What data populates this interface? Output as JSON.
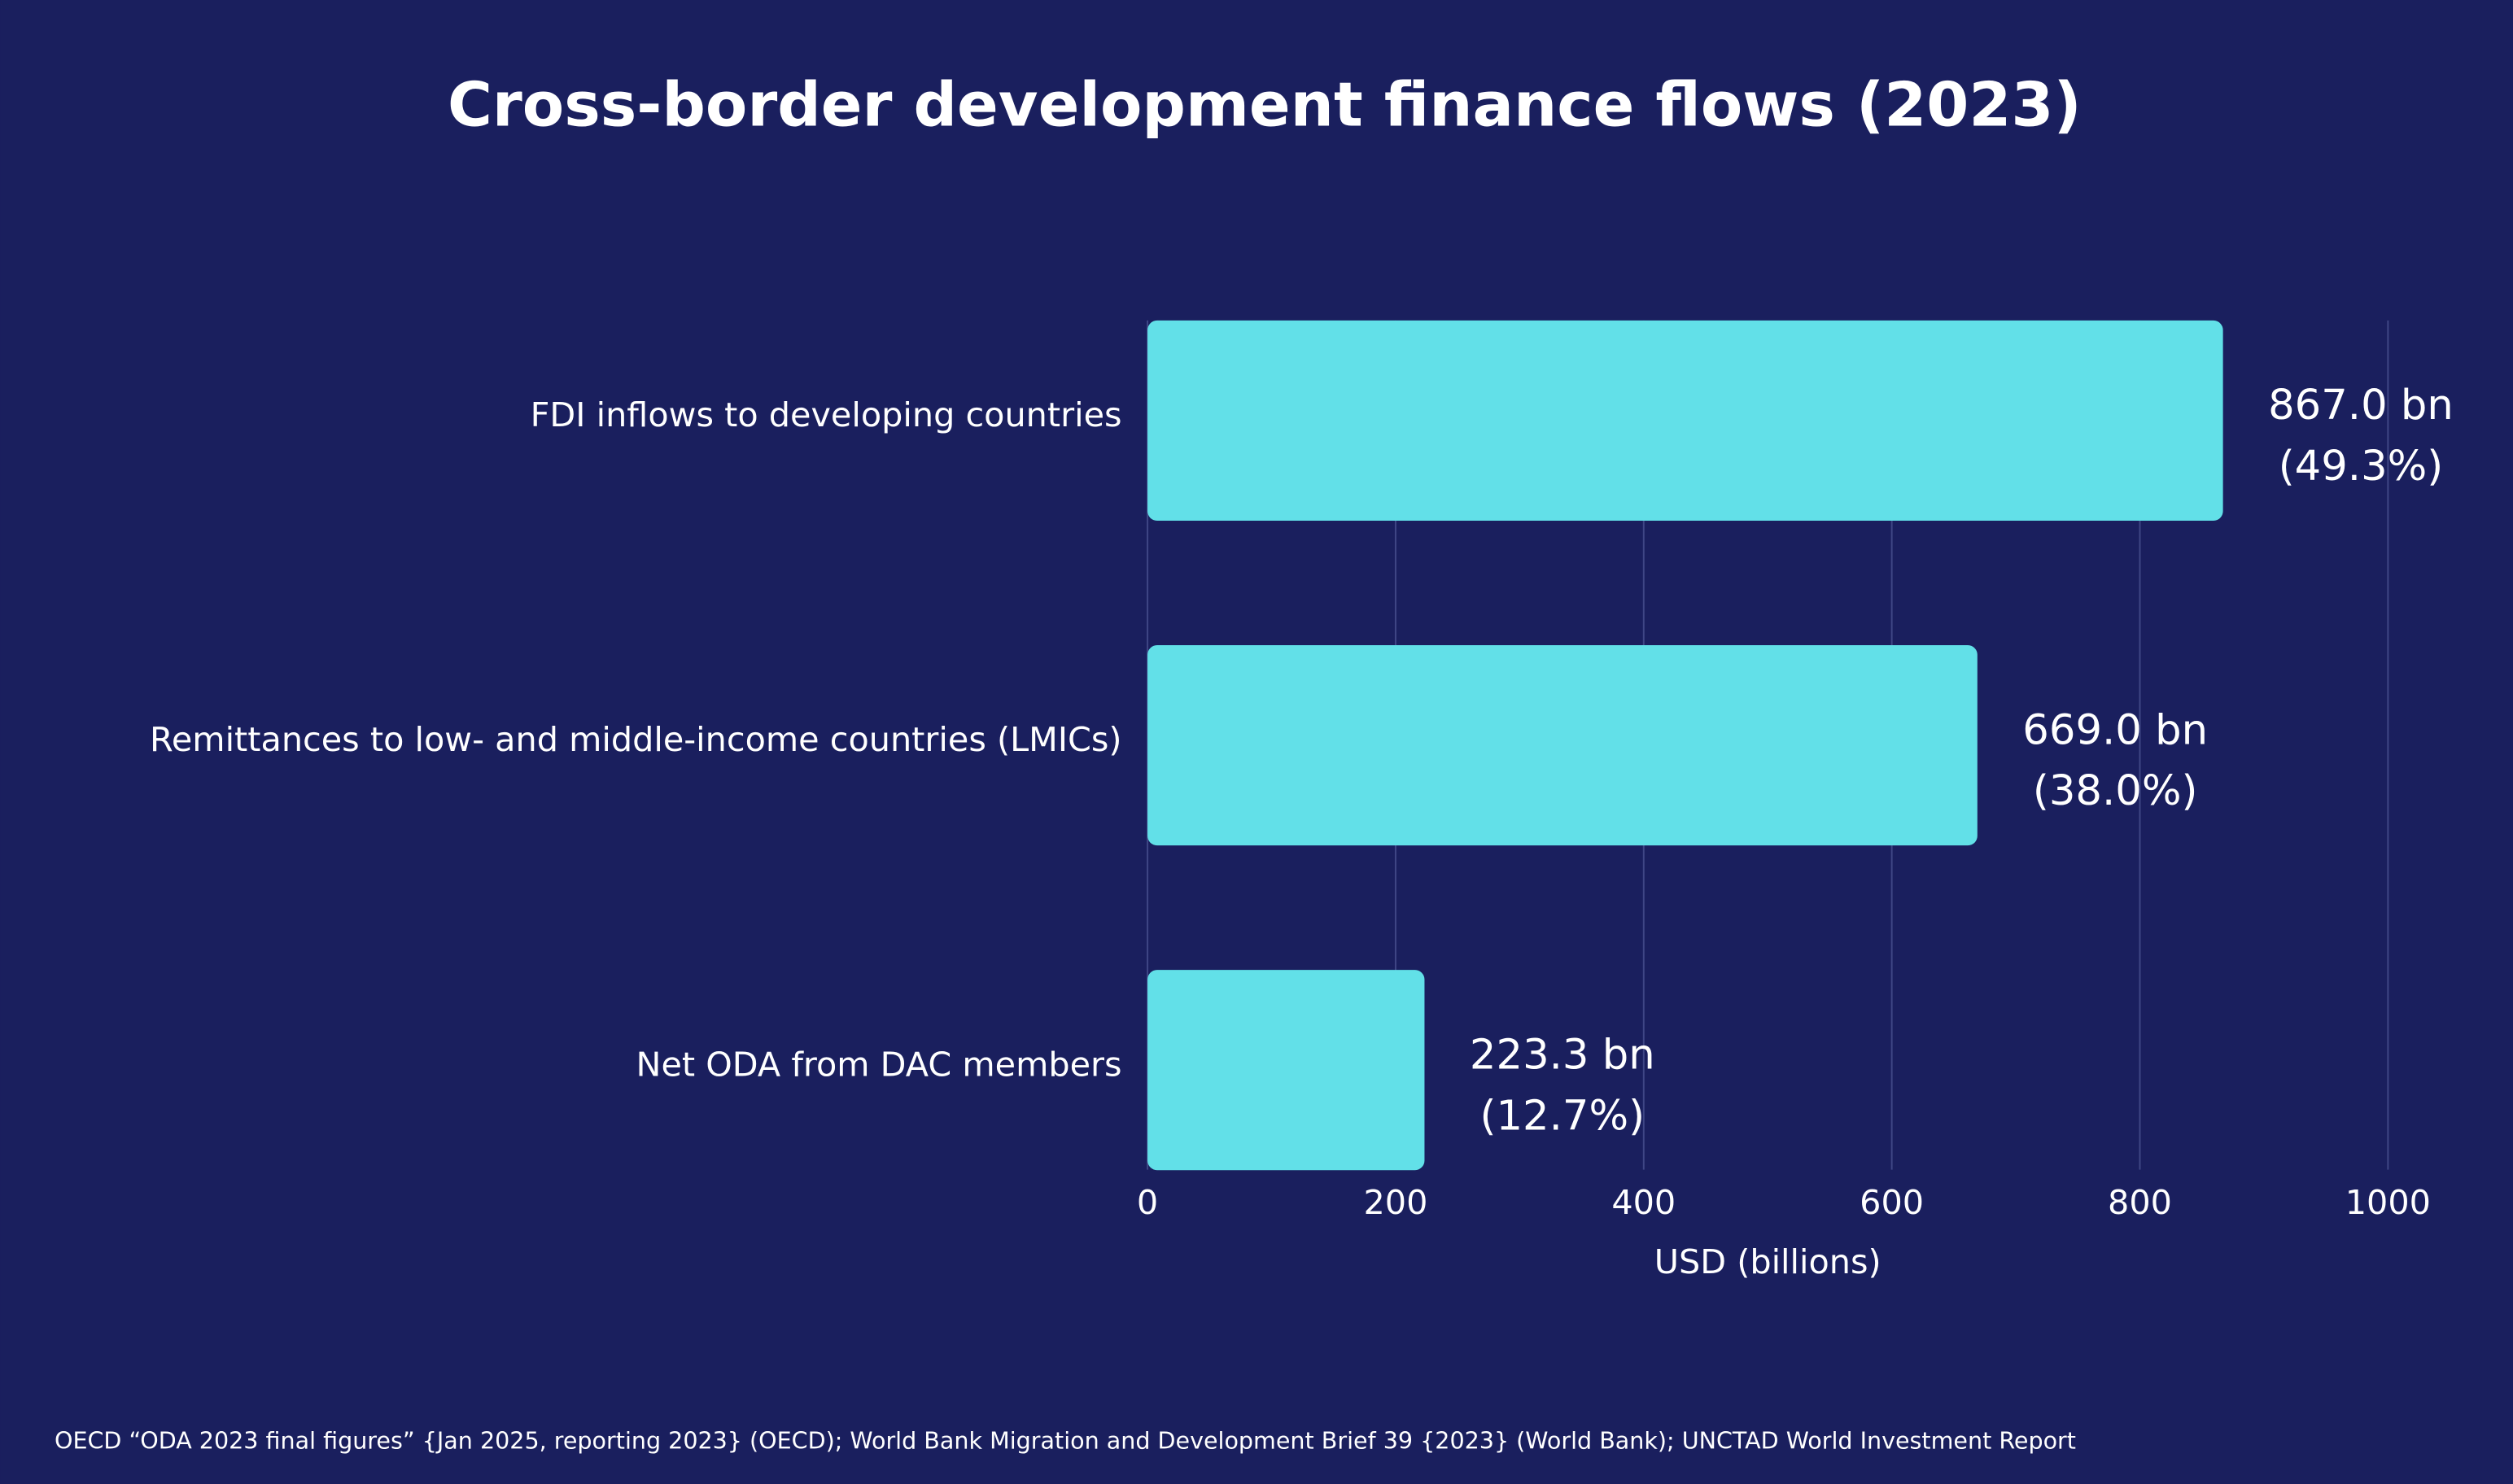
{
  "chart_data": {
    "type": "hbar",
    "title": "Cross-border development finance flows (2023)",
    "categories": [
      "FDI inflows to developing countries",
      "Remittances to low- and middle-income countries (LMICs)",
      "Net ODA from DAC members"
    ],
    "values": [
      867.0,
      669.0,
      223.3
    ],
    "value_labels": [
      "867.0 bn",
      "669.0 bn",
      "223.3 bn"
    ],
    "share_labels": [
      "(49.3%)",
      "(38.0%)",
      "(12.7%)"
    ],
    "color": "#62e0e8",
    "xlabel": "USD (billions)",
    "xlim": [
      0,
      1000
    ],
    "xticks": [
      0,
      200,
      400,
      600,
      800,
      1000
    ],
    "grid": true,
    "source": "OECD “ODA 2023 final figures” {Jan 2025, reporting 2023} (OECD); World Bank Migration and Development Brief 39 {2023} (World Bank); UNCTAD  World Investment Report"
  }
}
